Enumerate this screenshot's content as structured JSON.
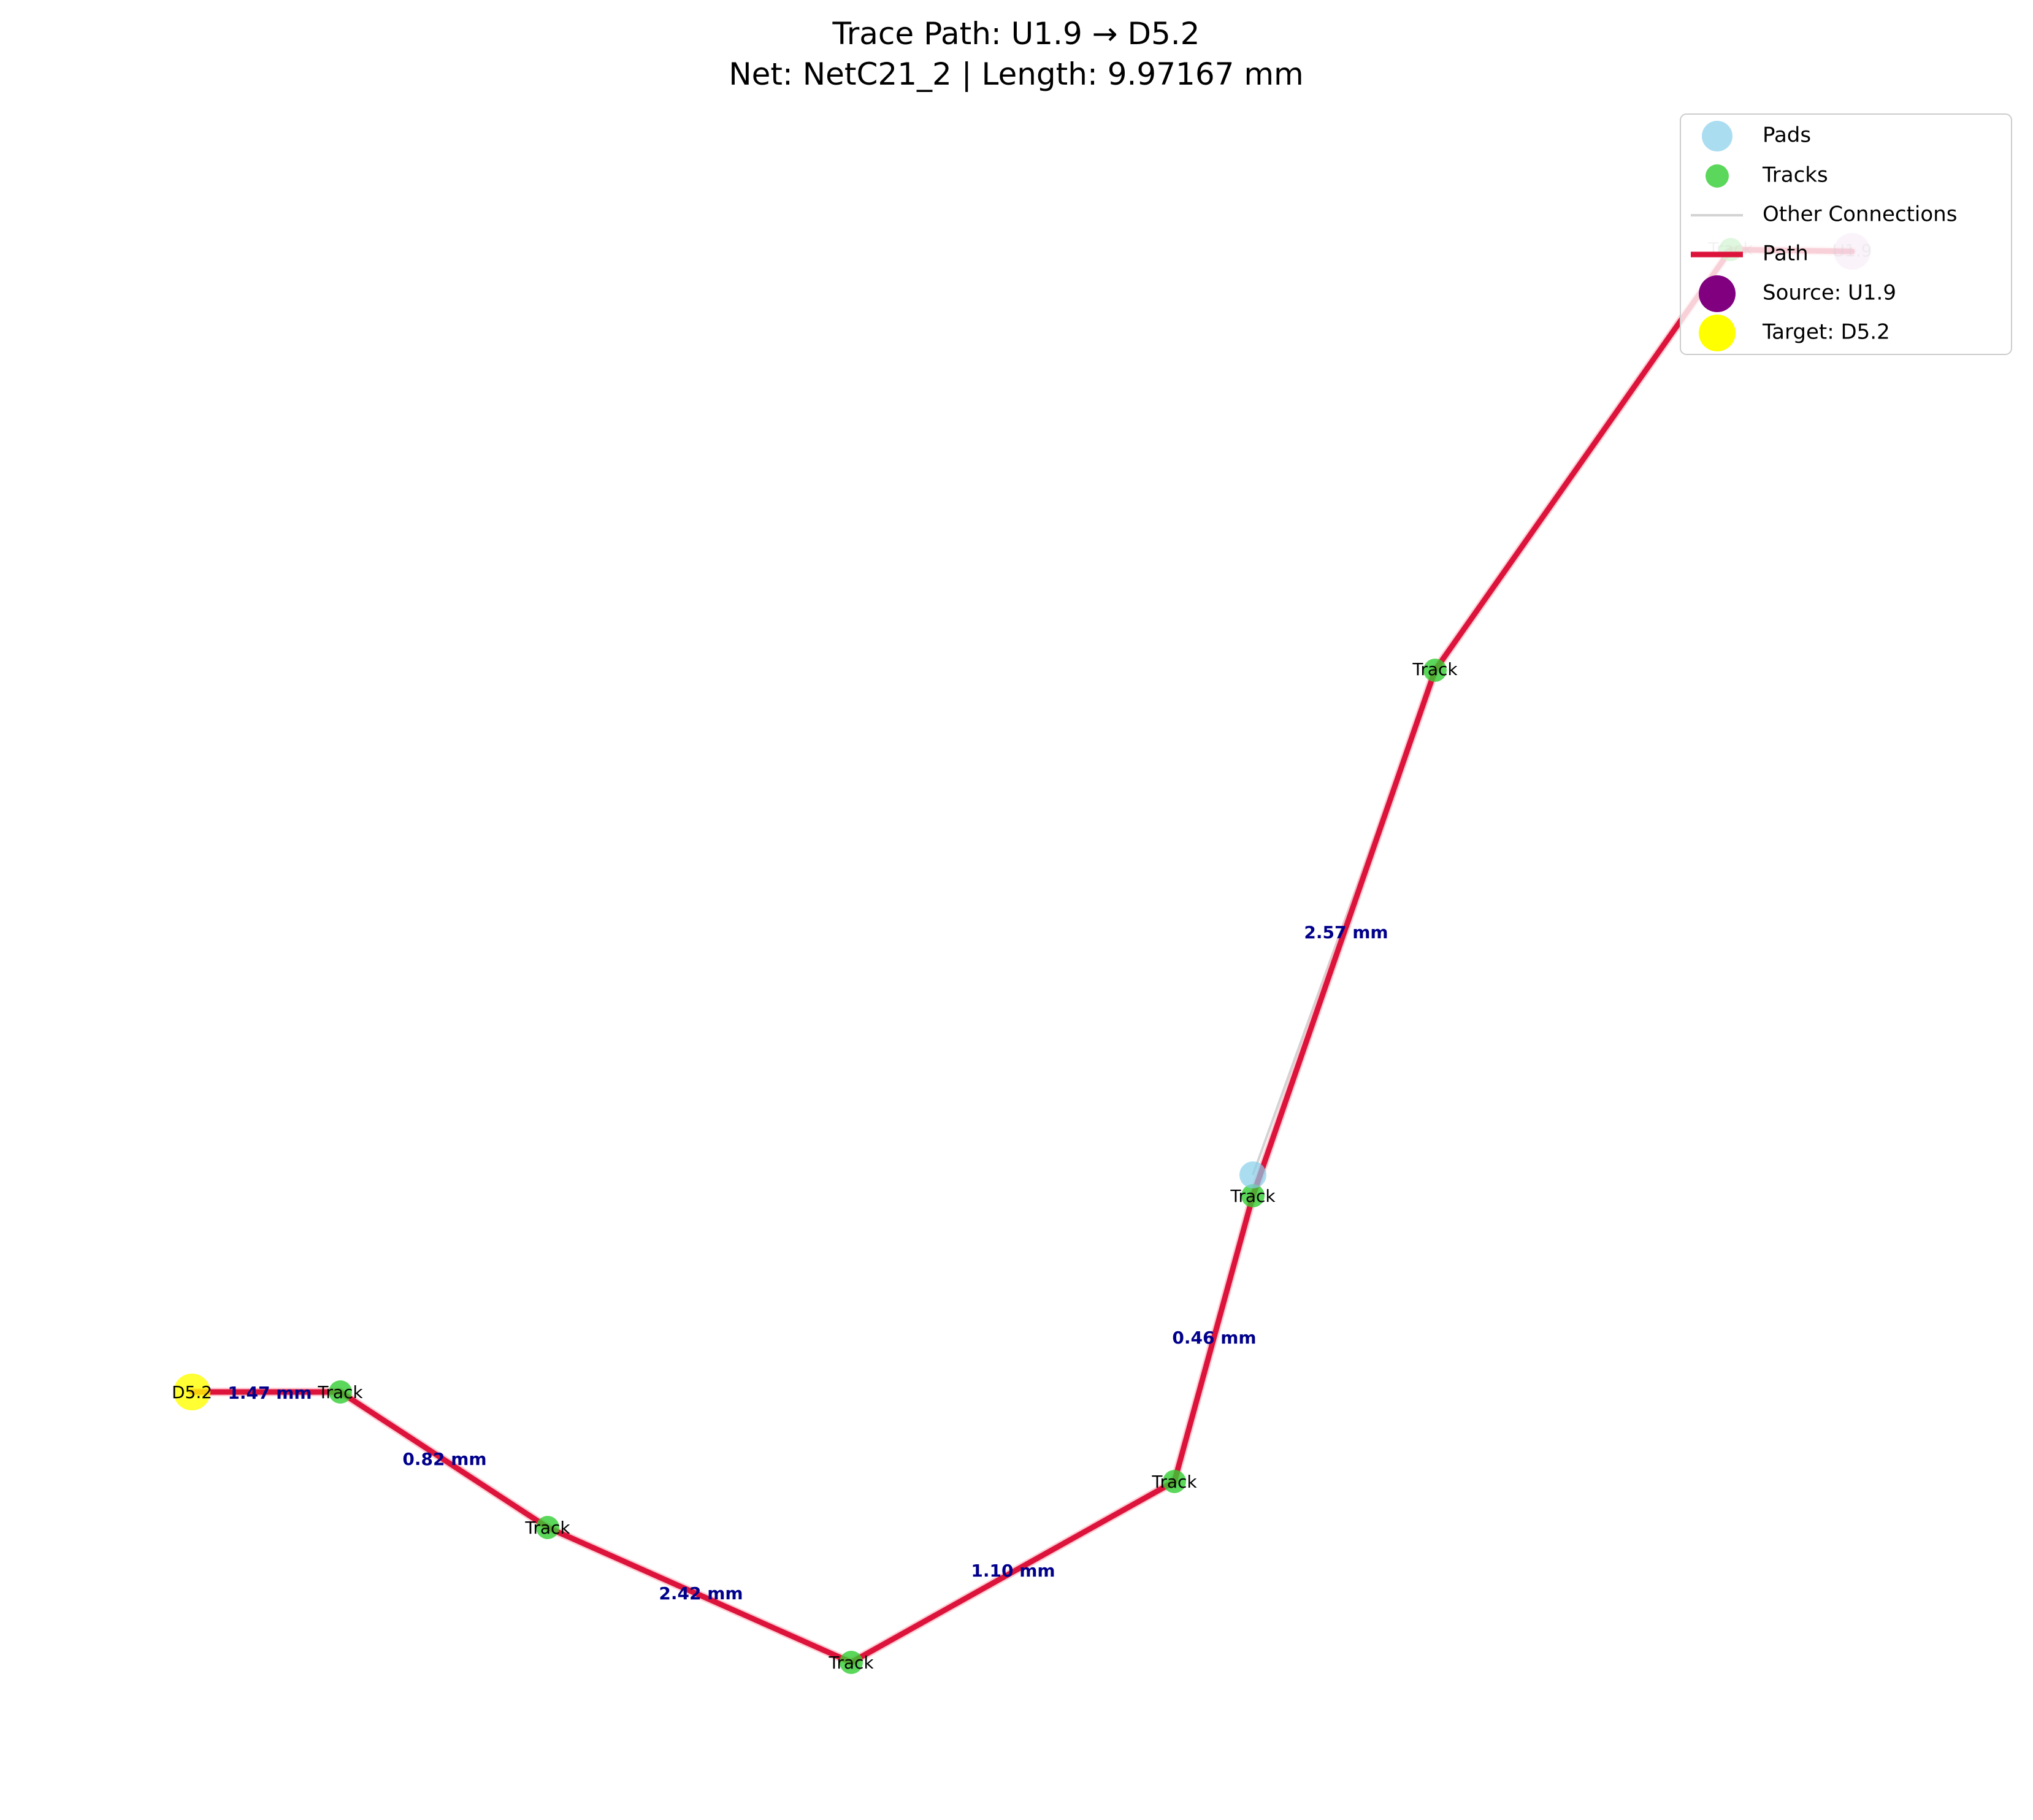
{
  "title": {
    "line1": "Trace Path: U1.9 → D5.2",
    "line2": "Net: NetC21_2 | Length: 9.97167 mm"
  },
  "colors": {
    "pad": "#87ceeb",
    "track": "#32cd32",
    "other": "#d3d3d3",
    "path": "#dc143c",
    "path_glow": "#ffb6c1",
    "source": "#800080",
    "target": "#ffff00",
    "edge_text": "#00008b"
  },
  "legend": {
    "items": [
      {
        "label": "Pads",
        "kind": "pad"
      },
      {
        "label": "Tracks",
        "kind": "track"
      },
      {
        "label": "Other Connections",
        "kind": "other"
      },
      {
        "label": "Path",
        "kind": "path"
      },
      {
        "label": "Source: U1.9",
        "kind": "source"
      },
      {
        "label": "Target: D5.2",
        "kind": "target"
      }
    ]
  },
  "nodes": [
    {
      "id": "U1.9",
      "label": "U1.9",
      "kind": "source"
    },
    {
      "id": "t0",
      "label": "Track",
      "kind": "track"
    },
    {
      "id": "t1",
      "label": "Track",
      "kind": "track"
    },
    {
      "id": "t2",
      "label": "Track",
      "kind": "track"
    },
    {
      "id": "t3",
      "label": "Track",
      "kind": "track"
    },
    {
      "id": "t4",
      "label": "Track",
      "kind": "track"
    },
    {
      "id": "t5",
      "label": "Track",
      "kind": "track"
    },
    {
      "id": "t6",
      "label": "Track",
      "kind": "track"
    },
    {
      "id": "D5.2",
      "label": "D5.2",
      "kind": "target"
    },
    {
      "id": "p1",
      "label": "",
      "kind": "pad"
    }
  ],
  "edges": [
    {
      "from": "U1.9",
      "to": "t0",
      "label": ""
    },
    {
      "from": "t0",
      "to": "t1",
      "label": ""
    },
    {
      "from": "t1",
      "to": "t2",
      "label": "2.57 mm"
    },
    {
      "from": "t2",
      "to": "t3",
      "label": "0.46 mm"
    },
    {
      "from": "t3",
      "to": "t4",
      "label": "1.10 mm"
    },
    {
      "from": "t4",
      "to": "t5",
      "label": "2.42 mm"
    },
    {
      "from": "t5",
      "to": "t6",
      "label": "0.82 mm"
    },
    {
      "from": "t6",
      "to": "D5.2",
      "label": "1.47 mm"
    }
  ]
}
